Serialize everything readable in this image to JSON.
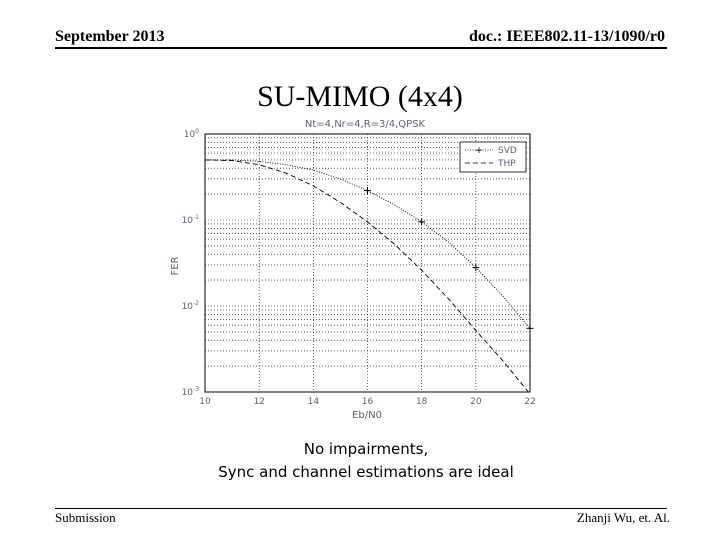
{
  "header": {
    "date": "September 2013",
    "doc": "doc.: IEEE802.11-13/1090/r0"
  },
  "slide": {
    "title": "SU-MIMO   (4x4)",
    "note_line1": "No impairments,",
    "note_line2": "Sync and channel estimations are ideal"
  },
  "footer": {
    "left": "Submission",
    "right": "Zhanji Wu, et. Al."
  },
  "chart_data": {
    "type": "line",
    "title": "Nt=4,Nr=4,R=3/4,QPSK",
    "xlabel": "Eb/N0",
    "ylabel": "FER",
    "xlim": [
      10,
      22
    ],
    "ylim": [
      0.001,
      1
    ],
    "yscale": "log",
    "grid": true,
    "legend_position": "top-right",
    "x_ticks": [
      "10",
      "12",
      "14",
      "16",
      "18",
      "20",
      "22"
    ],
    "y_ticks": [
      {
        "base": "10",
        "exp": "0",
        "value": 1
      },
      {
        "base": "10",
        "exp": "-1",
        "value": 0.1
      },
      {
        "base": "10",
        "exp": "-2",
        "value": 0.01
      },
      {
        "base": "10",
        "exp": "-3",
        "value": 0.001
      }
    ],
    "series": [
      {
        "name": "SVD",
        "style": "dotted",
        "marker": "+",
        "color": "#000000",
        "x": [
          10,
          11,
          12,
          13,
          14,
          15,
          16,
          17,
          18,
          19,
          20,
          21,
          22
        ],
        "y": [
          0.5,
          0.5,
          0.48,
          0.44,
          0.38,
          0.3,
          0.22,
          0.15,
          0.095,
          0.055,
          0.028,
          0.013,
          0.0055
        ],
        "marker_x": [
          16,
          18,
          20,
          22
        ],
        "marker_y": [
          0.22,
          0.095,
          0.028,
          0.0055
        ]
      },
      {
        "name": "THP",
        "style": "dashed",
        "marker": "",
        "color": "#000000",
        "x": [
          10,
          11,
          12,
          13,
          14,
          15,
          16,
          17,
          18,
          19,
          20,
          21,
          22
        ],
        "y": [
          0.5,
          0.49,
          0.44,
          0.35,
          0.25,
          0.16,
          0.095,
          0.052,
          0.026,
          0.012,
          0.0052,
          0.0023,
          0.00095
        ]
      }
    ]
  }
}
